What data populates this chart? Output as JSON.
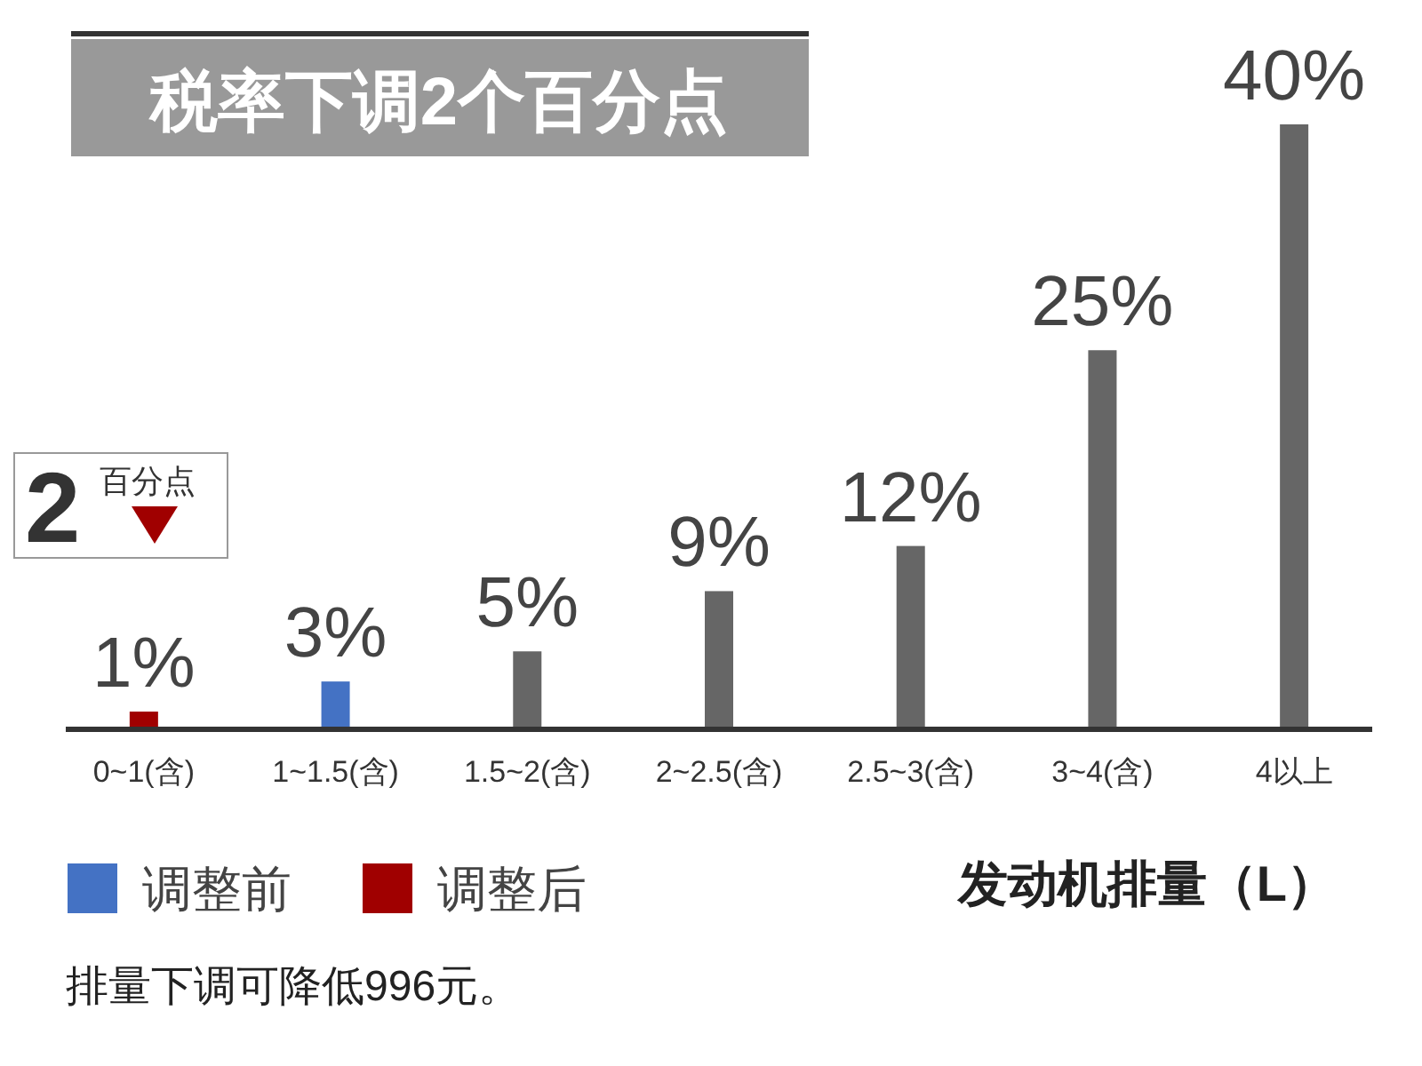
{
  "chart_data": {
    "type": "bar",
    "title": "税率下调2个百分点",
    "categories": [
      "0~1(含)",
      "1~1.5(含)",
      "1.5~2(含)",
      "2~2.5(含)",
      "2.5~3(含)",
      "3~4(含)",
      "4以上"
    ],
    "series": [
      {
        "name": "调整前",
        "color": "#4472c4",
        "values": [
          null,
          3,
          null,
          null,
          null,
          null,
          null
        ],
        "value_labels": [
          null,
          "3%",
          null,
          null,
          null,
          null,
          null
        ]
      },
      {
        "name": "调整后",
        "color": "#a00000",
        "values": [
          1,
          null,
          null,
          null,
          null,
          null,
          null
        ],
        "value_labels": [
          "1%",
          null,
          null,
          null,
          null,
          null,
          null
        ]
      },
      {
        "color": "#666666",
        "values": [
          null,
          null,
          5,
          9,
          12,
          25,
          40
        ],
        "value_labels": [
          null,
          null,
          "5%",
          "9%",
          "12%",
          "25%",
          "40%"
        ]
      }
    ],
    "xlabel": "发动机排量（L）",
    "legend": "bottom left",
    "tick_labels": "x",
    "annotations": [
      "2",
      "百分点",
      "排量下调可降低996元。"
    ]
  }
}
